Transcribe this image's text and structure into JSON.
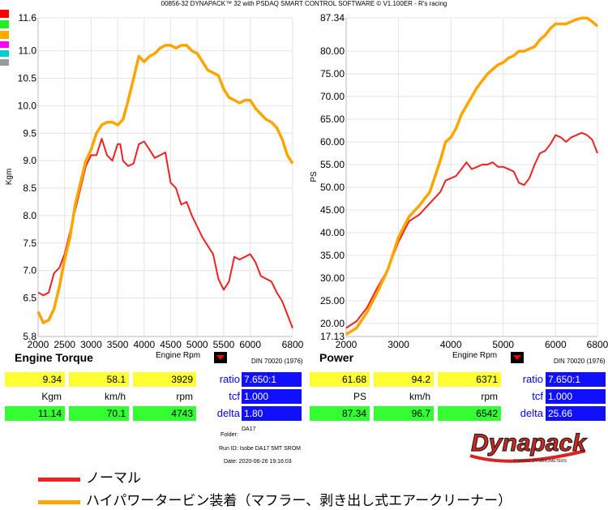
{
  "header": {
    "title": "00856-32 DYNAPACK™ 32 with PSDAQ SMART CONTROL SOFTWARE © V1.100ER - R's racing"
  },
  "chips": [
    "#ff0000",
    "#22ee22",
    "#ffaa00",
    "#ff00ff",
    "#00cccc",
    "#999999"
  ],
  "colors": {
    "normal": "#ee2222",
    "hipower": "#ffa500"
  },
  "chart_data": [
    {
      "type": "line",
      "title": "Engine Torque",
      "xlabel": "Engine Rpm",
      "ylabel": "Kgm",
      "note": "DIN 70020 (1976)",
      "xlim": [
        2000,
        6800
      ],
      "ylim": [
        5.8,
        11.6
      ],
      "xticks": [
        2000,
        2500,
        3000,
        3500,
        4000,
        4500,
        5000,
        5500,
        6000,
        6800
      ],
      "yticks": [
        5.8,
        6.5,
        7.0,
        7.5,
        8.0,
        8.5,
        9.0,
        9.5,
        10.0,
        10.5,
        11.0,
        11.6
      ],
      "ytick_labels": [
        "5.8",
        "6.5",
        "7.0",
        "7.5",
        "8.0",
        "8.5",
        "9.0",
        "9.5",
        "10.0",
        "10.5",
        "11.0",
        "11.6"
      ],
      "grid": true,
      "series": [
        {
          "key": "normal",
          "points": [
            [
              2000,
              6.6
            ],
            [
              2100,
              6.55
            ],
            [
              2200,
              6.6
            ],
            [
              2300,
              6.95
            ],
            [
              2400,
              7.05
            ],
            [
              2500,
              7.3
            ],
            [
              2600,
              7.7
            ],
            [
              2700,
              8.1
            ],
            [
              2800,
              8.5
            ],
            [
              2900,
              8.9
            ],
            [
              3000,
              9.1
            ],
            [
              3100,
              9.1
            ],
            [
              3200,
              9.4
            ],
            [
              3300,
              9.1
            ],
            [
              3400,
              9.0
            ],
            [
              3500,
              9.3
            ],
            [
              3550,
              9.3
            ],
            [
              3600,
              9.0
            ],
            [
              3700,
              8.9
            ],
            [
              3800,
              8.95
            ],
            [
              3900,
              9.3
            ],
            [
              4000,
              9.35
            ],
            [
              4100,
              9.2
            ],
            [
              4200,
              9.05
            ],
            [
              4300,
              9.1
            ],
            [
              4400,
              9.15
            ],
            [
              4500,
              8.6
            ],
            [
              4600,
              8.5
            ],
            [
              4700,
              8.2
            ],
            [
              4800,
              8.25
            ],
            [
              4900,
              8.0
            ],
            [
              5000,
              7.8
            ],
            [
              5100,
              7.6
            ],
            [
              5200,
              7.45
            ],
            [
              5300,
              7.3
            ],
            [
              5400,
              6.85
            ],
            [
              5500,
              6.65
            ],
            [
              5600,
              6.8
            ],
            [
              5700,
              7.25
            ],
            [
              5800,
              7.2
            ],
            [
              5900,
              7.25
            ],
            [
              6000,
              7.3
            ],
            [
              6100,
              7.15
            ],
            [
              6200,
              6.9
            ],
            [
              6300,
              6.85
            ],
            [
              6400,
              6.8
            ],
            [
              6500,
              6.6
            ],
            [
              6600,
              6.45
            ],
            [
              6700,
              6.2
            ],
            [
              6800,
              5.95
            ]
          ]
        },
        {
          "key": "hipower",
          "points": [
            [
              2000,
              6.25
            ],
            [
              2100,
              6.05
            ],
            [
              2200,
              6.1
            ],
            [
              2300,
              6.3
            ],
            [
              2400,
              6.7
            ],
            [
              2500,
              7.2
            ],
            [
              2600,
              7.6
            ],
            [
              2700,
              8.2
            ],
            [
              2800,
              8.6
            ],
            [
              2900,
              9.0
            ],
            [
              3000,
              9.2
            ],
            [
              3100,
              9.5
            ],
            [
              3200,
              9.65
            ],
            [
              3300,
              9.7
            ],
            [
              3400,
              9.7
            ],
            [
              3500,
              9.65
            ],
            [
              3600,
              9.75
            ],
            [
              3700,
              10.1
            ],
            [
              3800,
              10.5
            ],
            [
              3900,
              10.9
            ],
            [
              4000,
              10.8
            ],
            [
              4100,
              10.9
            ],
            [
              4200,
              10.95
            ],
            [
              4300,
              11.05
            ],
            [
              4400,
              11.1
            ],
            [
              4500,
              11.1
            ],
            [
              4600,
              11.05
            ],
            [
              4700,
              11.1
            ],
            [
              4800,
              11.1
            ],
            [
              4900,
              11.0
            ],
            [
              5000,
              10.95
            ],
            [
              5100,
              10.8
            ],
            [
              5200,
              10.65
            ],
            [
              5300,
              10.6
            ],
            [
              5400,
              10.55
            ],
            [
              5500,
              10.3
            ],
            [
              5600,
              10.15
            ],
            [
              5700,
              10.1
            ],
            [
              5800,
              10.05
            ],
            [
              5900,
              10.1
            ],
            [
              6000,
              10.1
            ],
            [
              6100,
              9.95
            ],
            [
              6200,
              9.85
            ],
            [
              6300,
              9.75
            ],
            [
              6400,
              9.7
            ],
            [
              6500,
              9.6
            ],
            [
              6600,
              9.4
            ],
            [
              6700,
              9.1
            ],
            [
              6800,
              8.95
            ]
          ]
        }
      ]
    },
    {
      "type": "line",
      "title": "Power",
      "xlabel": "Engine Rpm",
      "ylabel": "PS",
      "note": "DIN 70020 (1976)",
      "xlim": [
        2000,
        6800
      ],
      "ylim": [
        17.13,
        87.34
      ],
      "xticks": [
        2000,
        3000,
        4000,
        5000,
        6000,
        6800
      ],
      "yticks": [
        17.13,
        20,
        25,
        30,
        35,
        40,
        45,
        50,
        55,
        60,
        65,
        70,
        75,
        80,
        87.34
      ],
      "ytick_labels": [
        "17.13",
        "20.00",
        "25.00",
        "30.00",
        "35.00",
        "40.00",
        "45.00",
        "50.00",
        "55.00",
        "60.00",
        "65.00",
        "70.00",
        "75.00",
        "80.00",
        "87.34"
      ],
      "grid": true,
      "series": [
        {
          "key": "normal",
          "points": [
            [
              2000,
              19.0
            ],
            [
              2200,
              20.5
            ],
            [
              2400,
              23.5
            ],
            [
              2600,
              28.0
            ],
            [
              2800,
              32.0
            ],
            [
              3000,
              38.0
            ],
            [
              3200,
              42.5
            ],
            [
              3400,
              44.0
            ],
            [
              3600,
              46.5
            ],
            [
              3800,
              49.0
            ],
            [
              3900,
              51.5
            ],
            [
              4000,
              52.0
            ],
            [
              4100,
              52.5
            ],
            [
              4200,
              54.0
            ],
            [
              4300,
              55.5
            ],
            [
              4400,
              54.0
            ],
            [
              4500,
              54.5
            ],
            [
              4600,
              55.0
            ],
            [
              4700,
              55.0
            ],
            [
              4800,
              55.5
            ],
            [
              4900,
              54.5
            ],
            [
              5000,
              54.5
            ],
            [
              5100,
              54.0
            ],
            [
              5200,
              53.5
            ],
            [
              5300,
              51.0
            ],
            [
              5400,
              50.5
            ],
            [
              5500,
              52.0
            ],
            [
              5600,
              55.0
            ],
            [
              5700,
              57.5
            ],
            [
              5800,
              58.0
            ],
            [
              5900,
              59.5
            ],
            [
              6000,
              61.5
            ],
            [
              6100,
              61.0
            ],
            [
              6200,
              60.0
            ],
            [
              6300,
              61.0
            ],
            [
              6400,
              61.5
            ],
            [
              6500,
              62.0
            ],
            [
              6600,
              61.5
            ],
            [
              6700,
              60.5
            ],
            [
              6800,
              57.5
            ]
          ]
        },
        {
          "key": "hipower",
          "points": [
            [
              2000,
              17.6
            ],
            [
              2200,
              19.0
            ],
            [
              2400,
              22.5
            ],
            [
              2600,
              27.0
            ],
            [
              2800,
              32.0
            ],
            [
              3000,
              39.0
            ],
            [
              3200,
              43.5
            ],
            [
              3400,
              46.0
            ],
            [
              3600,
              49.0
            ],
            [
              3800,
              56.0
            ],
            [
              3900,
              60.0
            ],
            [
              4000,
              61.0
            ],
            [
              4100,
              63.0
            ],
            [
              4200,
              66.0
            ],
            [
              4300,
              68.0
            ],
            [
              4400,
              70.0
            ],
            [
              4500,
              72.0
            ],
            [
              4600,
              73.5
            ],
            [
              4700,
              75.0
            ],
            [
              4800,
              76.0
            ],
            [
              4900,
              77.0
            ],
            [
              5000,
              77.5
            ],
            [
              5100,
              78.5
            ],
            [
              5200,
              79.0
            ],
            [
              5300,
              80.0
            ],
            [
              5400,
              80.0
            ],
            [
              5500,
              80.5
            ],
            [
              5600,
              81.0
            ],
            [
              5700,
              82.5
            ],
            [
              5800,
              83.5
            ],
            [
              5900,
              85.0
            ],
            [
              6000,
              86.0
            ],
            [
              6100,
              86.0
            ],
            [
              6200,
              86.0
            ],
            [
              6300,
              86.5
            ],
            [
              6400,
              87.0
            ],
            [
              6500,
              87.3
            ],
            [
              6600,
              87.3
            ],
            [
              6700,
              86.5
            ],
            [
              6800,
              85.5
            ]
          ]
        }
      ]
    }
  ],
  "torque_panel": {
    "ratio_label": "ratio",
    "tcf_label": "tcf",
    "delta_label": "delta",
    "row1": [
      "9.34",
      "58.1",
      "3929"
    ],
    "units": [
      "Kgm",
      "km/h",
      "rpm"
    ],
    "row3": [
      "11.14",
      "70.1",
      "4743"
    ],
    "ratio": "7.650:1",
    "tcf": "1.000",
    "delta": "1.80"
  },
  "power_panel": {
    "ratio_label": "ratio",
    "tcf_label": "tcf",
    "delta_label": "delta",
    "row1": [
      "61.68",
      "94.2",
      "6371"
    ],
    "units": [
      "PS",
      "km/h",
      "rpm"
    ],
    "row3": [
      "87.34",
      "96.7",
      "6542"
    ],
    "ratio": "7.650:1",
    "tcf": "1.000",
    "delta": "25.66"
  },
  "info": {
    "file": "DA17",
    "folder": "Folder:",
    "run_id": "Run ID: Isobe DA17 5MT SROM",
    "date": "Date: 2020-06-26 19:16:03"
  },
  "logo": {
    "text": "Dynapack",
    "tagline": "CHASSIS DYNAMOMETERS"
  },
  "legend": [
    {
      "key": "normal",
      "label": "ノーマル"
    },
    {
      "key": "hipower",
      "label": "ハイパワータービン装着（マフラー、剥き出し式エアークリーナー）"
    }
  ]
}
